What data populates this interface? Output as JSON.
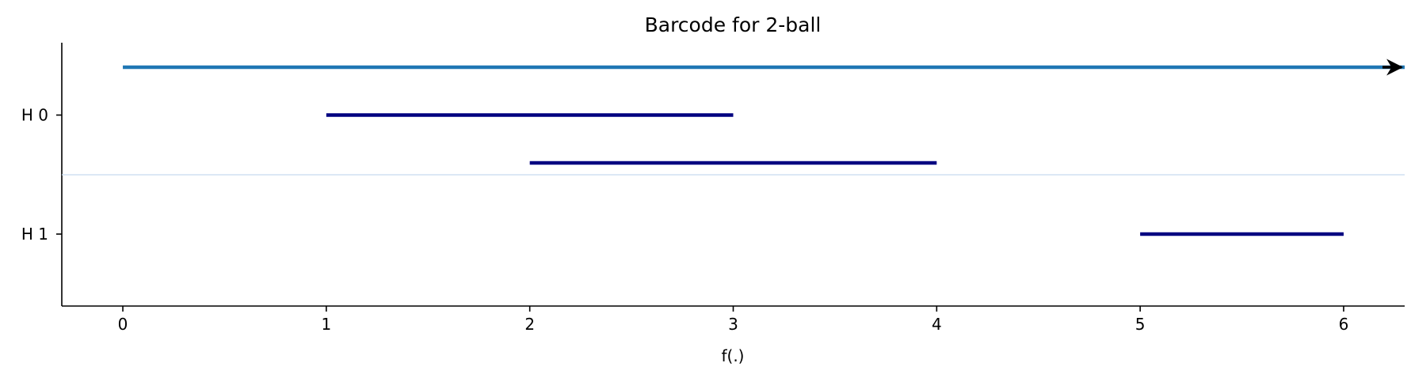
{
  "chart_data": {
    "type": "barcode",
    "title": "Barcode for 2-ball",
    "xlabel": "f(.)",
    "ylabel": "",
    "xlim": [
      -0.3,
      6.3
    ],
    "xticks": [
      0,
      1,
      2,
      3,
      4,
      5,
      6
    ],
    "groups": [
      {
        "name": "H 0",
        "bars": [
          {
            "start": 0,
            "end": 6.3,
            "infinite": true
          },
          {
            "start": 1,
            "end": 3,
            "infinite": false
          },
          {
            "start": 2,
            "end": 4,
            "infinite": false
          }
        ]
      },
      {
        "name": "H 1",
        "bars": [
          {
            "start": 5,
            "end": 6,
            "infinite": false
          }
        ]
      }
    ],
    "colors": {
      "infinite_bar": "#1f77b4",
      "finite_bar": "#000080",
      "arrow": "#000000",
      "separator": "#c6dbef"
    },
    "grid": false
  }
}
